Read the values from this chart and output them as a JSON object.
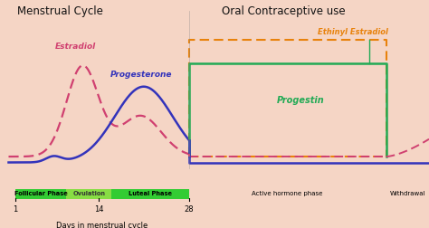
{
  "title_left": "Menstrual Cycle",
  "title_right": "Oral Contraceptive use",
  "bg_color": "#f5d5c5",
  "estradiol_color": "#d04070",
  "progesterone_color": "#3333bb",
  "ethinyl_color": "#e8820c",
  "progestin_color": "#22aa55",
  "follicular_color": "#33cc33",
  "ovulation_color": "#88dd44",
  "luteal_color": "#33cc33",
  "xlabel": "Days in menstrual cycle",
  "ethinyl_label": "Ethinyl Estradiol",
  "progestin_label": "Progestin",
  "estradiol_label": "Estradiol",
  "progesterone_label": "Progesterone",
  "active_label": "Active hormone phase",
  "withdrawal_label": "Withdrawal",
  "follicular_label": "Follicular Phase",
  "ovulation_label": "Ovulation",
  "luteal_label": "Luteal Phase"
}
